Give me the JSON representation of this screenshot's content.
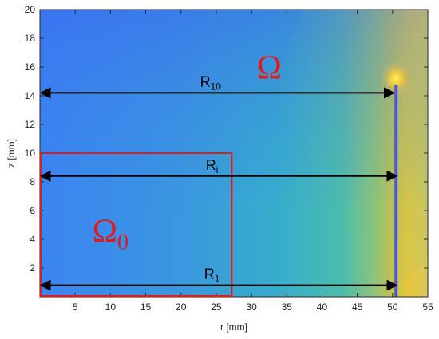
{
  "chart_data": {
    "type": "heatmap",
    "title": "",
    "xlabel": "r [mm]",
    "ylabel": "z [mm]",
    "xlim": [
      0,
      55
    ],
    "ylim": [
      0,
      20
    ],
    "xticks": [
      "5",
      "10",
      "15",
      "20",
      "25",
      "30",
      "35",
      "40",
      "45",
      "50",
      "55"
    ],
    "yticks": [
      "2",
      "4",
      "6",
      "8",
      "10",
      "12",
      "14",
      "16",
      "18",
      "20"
    ],
    "colormap": "parula",
    "hotspot": {
      "r": 50.5,
      "z": 15.2
    },
    "annotations": [
      {
        "label_main": "R",
        "label_sub": "10",
        "r_start": 0,
        "r_end": 50.2,
        "z": 14.2
      },
      {
        "label_main": "R",
        "label_sub": "i",
        "r_start": 0,
        "r_end": 50.6,
        "z": 8.4
      },
      {
        "label_main": "R",
        "label_sub": "1",
        "r_start": 0,
        "r_end": 50.6,
        "z": 0.8
      }
    ],
    "regions": [
      {
        "label_main": "Ω",
        "label_sub": "",
        "label_r": 32.5,
        "label_z": 15.2
      },
      {
        "label_main": "Ω",
        "label_sub": "0",
        "r_start": 0,
        "r_end": 27.2,
        "z_start": 0,
        "z_end": 10,
        "label_r": 10,
        "label_z": 3.8
      }
    ],
    "colors": {
      "region_outline": "#e11a1a",
      "arrow": "#000000",
      "cold": "#3a7ff0",
      "mid": "#3fb1c0",
      "warm": "#e6c23a",
      "hot": "#f7e14a"
    }
  }
}
